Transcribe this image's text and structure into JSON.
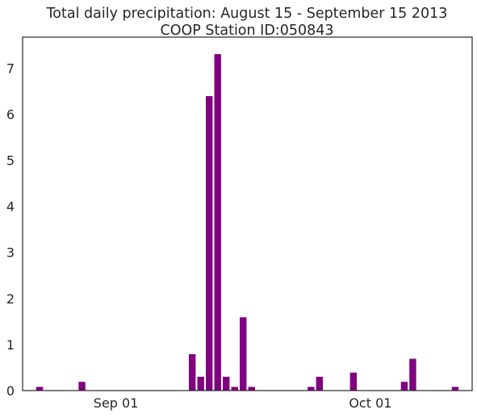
{
  "chart_data": {
    "type": "bar",
    "title_line1": "Total daily precipitation: August 15 - September 15 2013",
    "title_line2": "COOP Station ID:050843",
    "xlabel": "",
    "ylabel": "",
    "x_axis": "date",
    "xlim": [
      "2013-08-21",
      "2013-10-13"
    ],
    "ylim": [
      0,
      7.67
    ],
    "grid": false,
    "bar_color": "#800080",
    "x_ticks": [
      {
        "date": "2013-09-01",
        "label": "Sep 01"
      },
      {
        "date": "2013-10-01",
        "label": "Oct 01"
      }
    ],
    "y_ticks": [
      0,
      1,
      2,
      3,
      4,
      5,
      6,
      7
    ],
    "bars": [
      {
        "date": "2013-08-23",
        "value": 0.08
      },
      {
        "date": "2013-08-28",
        "value": 0.19
      },
      {
        "date": "2013-09-10",
        "value": 0.79
      },
      {
        "date": "2013-09-11",
        "value": 0.3
      },
      {
        "date": "2013-09-12",
        "value": 6.39
      },
      {
        "date": "2013-09-13",
        "value": 7.3
      },
      {
        "date": "2013-09-14",
        "value": 0.3
      },
      {
        "date": "2013-09-15",
        "value": 0.08
      },
      {
        "date": "2013-09-16",
        "value": 1.59
      },
      {
        "date": "2013-09-17",
        "value": 0.08
      },
      {
        "date": "2013-09-24",
        "value": 0.08
      },
      {
        "date": "2013-09-25",
        "value": 0.3
      },
      {
        "date": "2013-09-29",
        "value": 0.39
      },
      {
        "date": "2013-10-05",
        "value": 0.19
      },
      {
        "date": "2013-10-06",
        "value": 0.69
      },
      {
        "date": "2013-10-11",
        "value": 0.08
      }
    ]
  }
}
